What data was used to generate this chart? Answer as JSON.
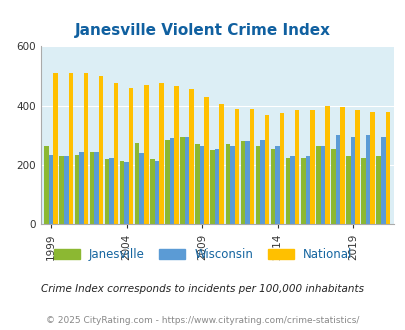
{
  "title": "Janesville Violent Crime Index",
  "years": [
    1999,
    2000,
    2001,
    2002,
    2003,
    2004,
    2005,
    2006,
    2007,
    2008,
    2009,
    2010,
    2011,
    2012,
    2013,
    2014,
    2015,
    2016,
    2017,
    2018,
    2019,
    2020,
    2021
  ],
  "janesville": [
    265,
    230,
    235,
    245,
    220,
    215,
    275,
    220,
    285,
    295,
    270,
    250,
    270,
    280,
    265,
    255,
    225,
    225,
    265,
    255,
    230,
    225,
    230
  ],
  "wisconsin": [
    235,
    230,
    245,
    245,
    225,
    210,
    240,
    215,
    290,
    295,
    265,
    255,
    265,
    280,
    285,
    265,
    230,
    230,
    265,
    300,
    295,
    300,
    295
  ],
  "national": [
    510,
    510,
    510,
    500,
    475,
    460,
    470,
    475,
    465,
    455,
    430,
    405,
    390,
    390,
    370,
    375,
    385,
    385,
    400,
    395,
    385,
    380,
    380
  ],
  "bar_colors": {
    "janesville": "#8cb832",
    "wisconsin": "#5b9bd5",
    "national": "#ffc000"
  },
  "ylim": [
    0,
    600
  ],
  "yticks": [
    0,
    200,
    400,
    600
  ],
  "xlabel_years": [
    1999,
    2004,
    2009,
    2014,
    2019
  ],
  "bg_color": "#dceef5",
  "title_color": "#1060a0",
  "legend_labels": [
    "Janesville",
    "Wisconsin",
    "National"
  ],
  "footnote1": "Crime Index corresponds to incidents per 100,000 inhabitants",
  "footnote2": "© 2025 CityRating.com - https://www.cityrating.com/crime-statistics/",
  "footnote1_color": "#222222",
  "footnote2_color": "#888888",
  "grid_color": "#ffffff"
}
